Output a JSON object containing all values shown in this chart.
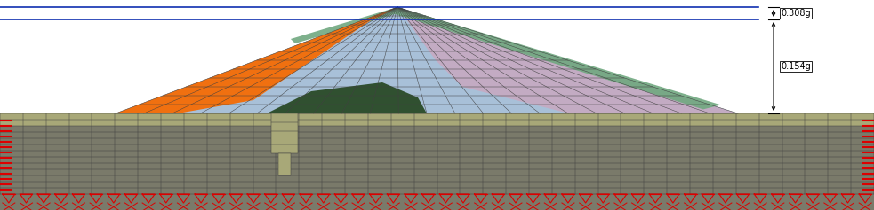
{
  "fig_width": 9.83,
  "fig_height": 2.37,
  "dpi": 100,
  "bg_color": "#ffffff",
  "ground_color": "#7a7a6a",
  "ground_top_color": "#a8a878",
  "dam_light_blue_color": "#a8c0d8",
  "dam_pink_color": "#c8a8c0",
  "dam_green_top_color": "#70a880",
  "orange_color": "#f07010",
  "dark_green_color": "#305030",
  "grid_color": "#404040",
  "grid_lw": 0.35,
  "boundary_color": "#dd0000",
  "blue_line_color": "#1030b0",
  "blue_line_lw": 1.2,
  "label_0308": "0.308g",
  "label_0154": "0.154g",
  "label_fontsize": 7
}
